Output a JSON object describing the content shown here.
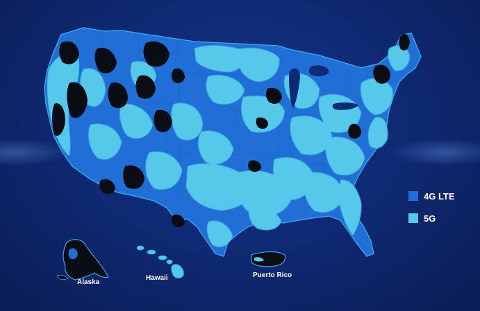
{
  "colors": {
    "background": "#0f2a74",
    "lte": "#1f6fd6",
    "fiveg": "#56c8ea",
    "no_coverage": "#0b0d14",
    "outline": "#3aa0e8"
  },
  "legend": [
    {
      "label": "4G LTE",
      "color": "#1f6fd6"
    },
    {
      "label": "5G",
      "color": "#56c8ea"
    }
  ],
  "region_labels": {
    "alaska": "Alaska",
    "hawaii": "Hawaii",
    "puerto_rico": "Puerto Rico"
  }
}
